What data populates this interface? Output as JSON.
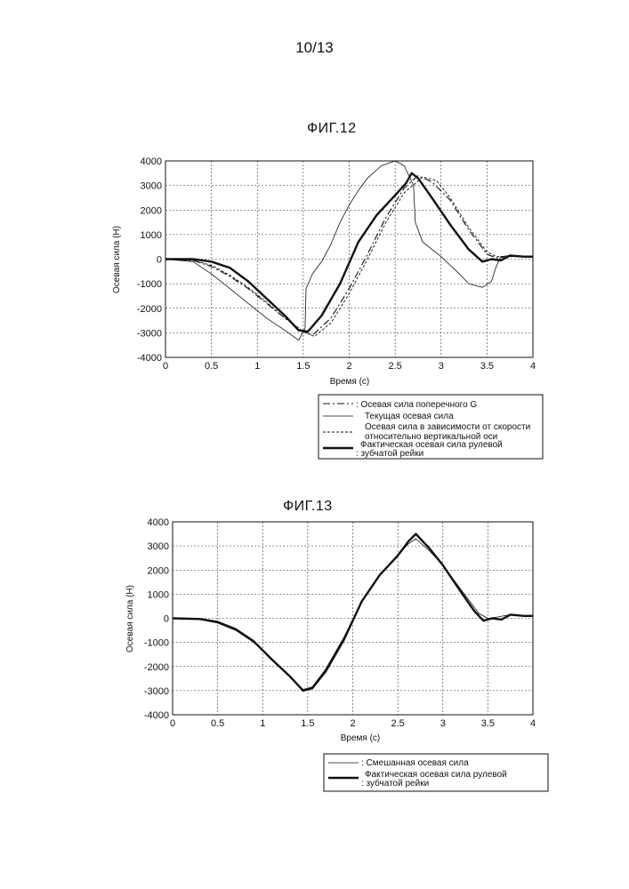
{
  "page": {
    "number": "10/13"
  },
  "chart_data": [
    {
      "type": "line",
      "title": "ФИГ.12",
      "xlabel": "Время (с)",
      "ylabel": "Осевая сила (Н)",
      "xlim": [
        0,
        4
      ],
      "ylim": [
        -4000,
        4000
      ],
      "grid": true,
      "legend_position": "bottom-right",
      "x_ticks": [
        "0",
        "0.5",
        "1",
        "1.5",
        "2",
        "2.5",
        "3",
        "3.5",
        "4"
      ],
      "y_ticks": [
        "4000",
        "3000",
        "2000",
        "1000",
        "0",
        "-1000",
        "-2000",
        "-3000",
        "-4000"
      ],
      "series": [
        {
          "name": ": Осевая сила поперечного G",
          "style": "dashdot",
          "points": [
            [
              0,
              0
            ],
            [
              0.3,
              -50
            ],
            [
              0.5,
              -300
            ],
            [
              0.7,
              -700
            ],
            [
              0.9,
              -1200
            ],
            [
              1.1,
              -1800
            ],
            [
              1.3,
              -2400
            ],
            [
              1.5,
              -2950
            ],
            [
              1.6,
              -3100
            ],
            [
              1.8,
              -2400
            ],
            [
              2.0,
              -1200
            ],
            [
              2.2,
              200
            ],
            [
              2.4,
              1700
            ],
            [
              2.6,
              2900
            ],
            [
              2.75,
              3400
            ],
            [
              2.9,
              3150
            ],
            [
              3.1,
              2400
            ],
            [
              3.3,
              1200
            ],
            [
              3.5,
              200
            ],
            [
              3.6,
              50
            ],
            [
              3.8,
              120
            ],
            [
              4.0,
              80
            ]
          ]
        },
        {
          "name": "Текущая осевая сила",
          "style": "thin",
          "points": [
            [
              0,
              0
            ],
            [
              0.3,
              -100
            ],
            [
              0.5,
              -600
            ],
            [
              0.7,
              -1200
            ],
            [
              0.9,
              -1800
            ],
            [
              1.1,
              -2400
            ],
            [
              1.3,
              -2900
            ],
            [
              1.45,
              -3300
            ],
            [
              1.52,
              -2800
            ],
            [
              1.53,
              -1200
            ],
            [
              1.6,
              -600
            ],
            [
              1.7,
              -100
            ],
            [
              1.8,
              600
            ],
            [
              1.9,
              1500
            ],
            [
              2.0,
              2200
            ],
            [
              2.1,
              2800
            ],
            [
              2.2,
              3300
            ],
            [
              2.35,
              3800
            ],
            [
              2.5,
              4000
            ],
            [
              2.6,
              3800
            ],
            [
              2.7,
              3000
            ],
            [
              2.72,
              1500
            ],
            [
              2.8,
              700
            ],
            [
              3.0,
              100
            ],
            [
              3.2,
              -600
            ],
            [
              3.3,
              -1000
            ],
            [
              3.45,
              -1150
            ],
            [
              3.55,
              -900
            ],
            [
              3.6,
              -300
            ],
            [
              3.65,
              100
            ],
            [
              3.75,
              150
            ],
            [
              3.9,
              100
            ],
            [
              4.0,
              100
            ]
          ]
        },
        {
          "name": "Осевая сила в зависимости от скорости относительно вертикальной оси",
          "style": "dashed",
          "points": [
            [
              0,
              0
            ],
            [
              0.3,
              -50
            ],
            [
              0.5,
              -250
            ],
            [
              0.7,
              -650
            ],
            [
              0.9,
              -1150
            ],
            [
              1.1,
              -1750
            ],
            [
              1.3,
              -2400
            ],
            [
              1.5,
              -2950
            ],
            [
              1.62,
              -3150
            ],
            [
              1.8,
              -2600
            ],
            [
              2.0,
              -1400
            ],
            [
              2.2,
              0
            ],
            [
              2.4,
              1500
            ],
            [
              2.6,
              2700
            ],
            [
              2.8,
              3350
            ],
            [
              2.95,
              3200
            ],
            [
              3.1,
              2500
            ],
            [
              3.3,
              1300
            ],
            [
              3.5,
              300
            ],
            [
              3.6,
              100
            ],
            [
              3.8,
              100
            ],
            [
              4.0,
              80
            ]
          ]
        },
        {
          "name": "Фактическая осевая сила рулевой зубчатой рейки",
          "style": "thick",
          "points": [
            [
              0,
              0
            ],
            [
              0.3,
              0
            ],
            [
              0.5,
              -100
            ],
            [
              0.7,
              -350
            ],
            [
              0.9,
              -900
            ],
            [
              1.1,
              -1600
            ],
            [
              1.3,
              -2300
            ],
            [
              1.45,
              -2900
            ],
            [
              1.55,
              -2950
            ],
            [
              1.7,
              -2300
            ],
            [
              1.9,
              -1000
            ],
            [
              2.1,
              700
            ],
            [
              2.3,
              1800
            ],
            [
              2.5,
              2600
            ],
            [
              2.62,
              3100
            ],
            [
              2.68,
              3500
            ],
            [
              2.75,
              3300
            ],
            [
              2.9,
              2500
            ],
            [
              3.1,
              1400
            ],
            [
              3.3,
              400
            ],
            [
              3.45,
              -100
            ],
            [
              3.55,
              0
            ],
            [
              3.65,
              -50
            ],
            [
              3.75,
              150
            ],
            [
              3.9,
              100
            ],
            [
              4.0,
              100
            ]
          ]
        }
      ]
    },
    {
      "type": "line",
      "title": "ФИГ.13",
      "xlabel": "Время (с)",
      "ylabel": "Осевая сила (Н)",
      "xlim": [
        0,
        4
      ],
      "ylim": [
        -4000,
        4000
      ],
      "grid": true,
      "legend_position": "bottom-right",
      "x_ticks": [
        "0",
        "0.5",
        "1",
        "1.5",
        "2",
        "2.5",
        "3",
        "3.5",
        "4"
      ],
      "y_ticks": [
        "4000",
        "3000",
        "2000",
        "1000",
        "0",
        "-1000",
        "-2000",
        "-3000",
        "-4000"
      ],
      "series": [
        {
          "name": ": Смешанная осевая сила",
          "style": "thin",
          "points": [
            [
              0,
              0
            ],
            [
              0.3,
              -50
            ],
            [
              0.5,
              -200
            ],
            [
              0.7,
              -500
            ],
            [
              0.9,
              -1000
            ],
            [
              1.1,
              -1700
            ],
            [
              1.3,
              -2400
            ],
            [
              1.45,
              -2950
            ],
            [
              1.55,
              -2850
            ],
            [
              1.7,
              -2100
            ],
            [
              1.9,
              -800
            ],
            [
              2.1,
              700
            ],
            [
              2.3,
              1800
            ],
            [
              2.5,
              2600
            ],
            [
              2.62,
              3100
            ],
            [
              2.7,
              3300
            ],
            [
              2.85,
              2800
            ],
            [
              3.0,
              2200
            ],
            [
              3.2,
              1200
            ],
            [
              3.4,
              200
            ],
            [
              3.5,
              0
            ],
            [
              3.6,
              50
            ],
            [
              3.75,
              150
            ],
            [
              3.9,
              100
            ],
            [
              4.0,
              100
            ]
          ]
        },
        {
          "name": "Фактическая осевая сила рулевой зубчатой рейки",
          "style": "thick",
          "points": [
            [
              0,
              0
            ],
            [
              0.3,
              -30
            ],
            [
              0.5,
              -150
            ],
            [
              0.7,
              -450
            ],
            [
              0.9,
              -950
            ],
            [
              1.1,
              -1700
            ],
            [
              1.3,
              -2400
            ],
            [
              1.45,
              -3000
            ],
            [
              1.55,
              -2900
            ],
            [
              1.7,
              -2200
            ],
            [
              1.9,
              -900
            ],
            [
              2.1,
              700
            ],
            [
              2.3,
              1800
            ],
            [
              2.5,
              2600
            ],
            [
              2.62,
              3200
            ],
            [
              2.7,
              3500
            ],
            [
              2.85,
              2900
            ],
            [
              3.0,
              2200
            ],
            [
              3.2,
              1100
            ],
            [
              3.35,
              300
            ],
            [
              3.45,
              -100
            ],
            [
              3.55,
              0
            ],
            [
              3.65,
              -50
            ],
            [
              3.75,
              150
            ],
            [
              3.9,
              100
            ],
            [
              4.0,
              100
            ]
          ]
        }
      ]
    }
  ],
  "legend_fig12": {
    "line1": ": Осевая сила поперечного G",
    "line2": "Текущая осевая сила",
    "line3a": "Осевая сила в зависимости от скорости",
    "line3b": "относительно вертикальной оси",
    "line4a": "Фактическая осевая сила рулевой",
    "line4b": ": зубчатой рейки"
  },
  "legend_fig13": {
    "line1": ": Смешанная осевая сила",
    "line2a": "Фактическая осевая сила рулевой",
    "line2b": ": зубчатой рейки"
  }
}
